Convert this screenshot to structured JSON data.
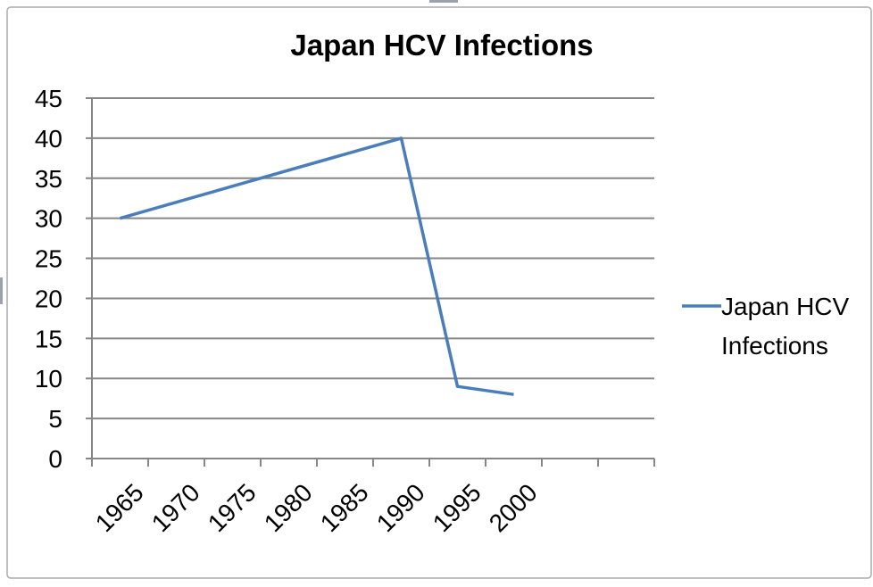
{
  "chart_data": {
    "type": "line",
    "title": "Japan HCV Infections",
    "xlabel": "",
    "ylabel": "",
    "categories": [
      "1965",
      "1970",
      "1975",
      "1980",
      "1985",
      "1990",
      "1995",
      "2000",
      "",
      ""
    ],
    "series": [
      {
        "name": "Japan HCV Infections",
        "values": [
          30,
          null,
          null,
          null,
          null,
          40,
          9,
          8,
          null,
          null
        ]
      }
    ],
    "ylim": [
      0,
      45
    ],
    "yticks": [
      0,
      5,
      10,
      15,
      20,
      25,
      30,
      35,
      40,
      45
    ],
    "grid": true,
    "legend": "right",
    "colors": {
      "line": "#4a7ebb",
      "grid": "#868686",
      "axis": "#868686",
      "border": "#a8acb1",
      "text": "#000000",
      "background": "#ffffff"
    }
  }
}
